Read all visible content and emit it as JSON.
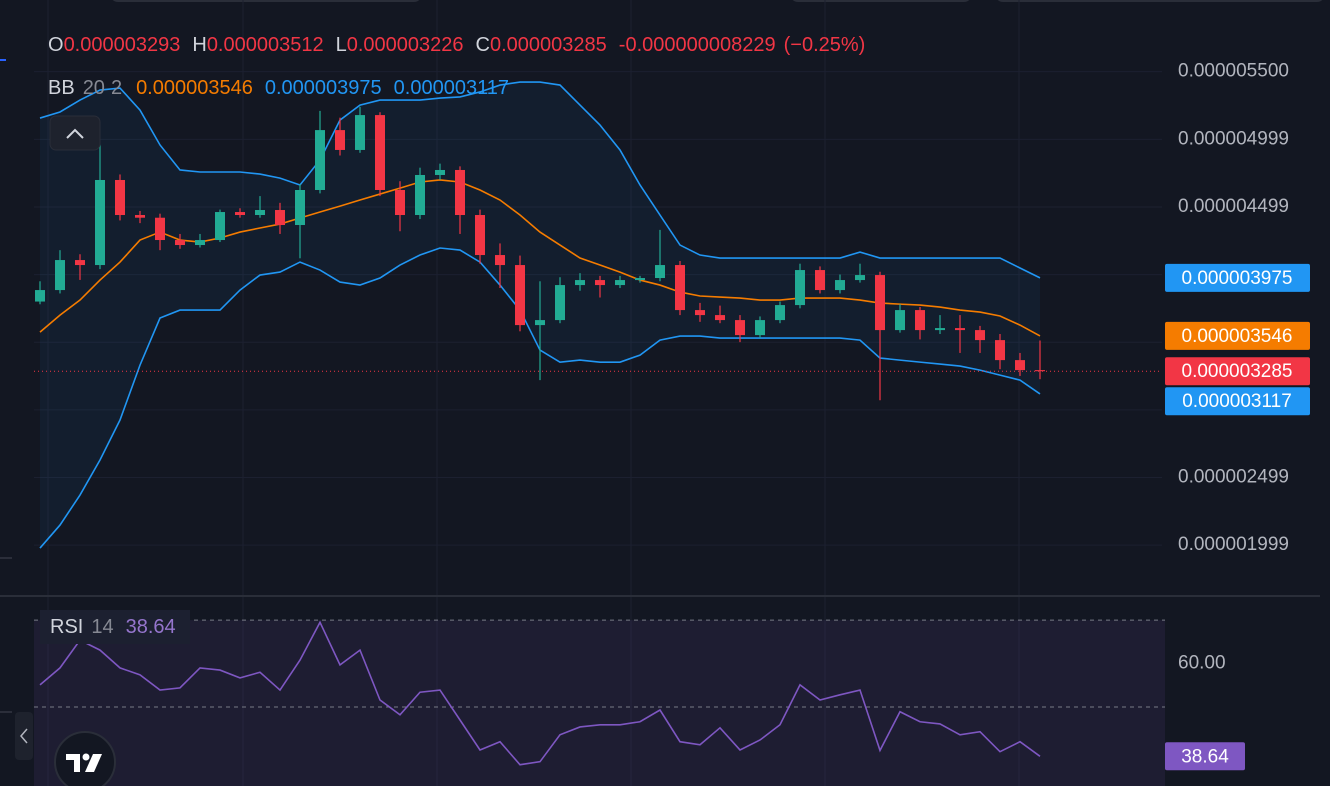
{
  "chart_data": [
    {
      "type": "candlestick",
      "ohlc_labels": [
        "O",
        "H",
        "L",
        "C"
      ],
      "open": [
        3.8e-06,
        3.885e-06,
        4.107e-06,
        4.07e-06,
        4.699e-06,
        4.44e-06,
        4.42e-06,
        4.255e-06,
        4.218e-06,
        4.255e-06,
        4.462e-06,
        4.44e-06,
        4.477e-06,
        4.366e-06,
        4.625e-06,
        5.068e-06,
        4.921e-06,
        5.179e-06,
        4.625e-06,
        4.44e-06,
        4.736e-06,
        4.773e-06,
        4.44e-06,
        4.144e-06,
        4.07e-06,
        3.626e-06,
        3.663e-06,
        3.922e-06,
        3.959e-06,
        3.922e-06,
        3.959e-06,
        3.974e-06,
        4.07e-06,
        3.737e-06,
        3.7e-06,
        3.663e-06,
        3.552e-06,
        3.663e-06,
        3.774e-06,
        4.033e-06,
        3.885e-06,
        3.959e-06,
        3.996e-06,
        3.589e-06,
        3.737e-06,
        3.589e-06,
        3.604e-06,
        3.589e-06,
        3.515e-06,
        3.367e-06,
        3.293e-06
      ],
      "high": [
        3.95e-06,
        4.18e-06,
        4.15e-06,
        4.96e-06,
        4.74e-06,
        4.47e-06,
        4.45e-06,
        4.3e-06,
        4.3e-06,
        4.48e-06,
        4.49e-06,
        4.58e-06,
        4.53e-06,
        4.67e-06,
        5.21e-06,
        5.16e-06,
        5.24e-06,
        5.2e-06,
        4.69e-06,
        4.79e-06,
        4.82e-06,
        4.8e-06,
        4.48e-06,
        4.23e-06,
        4.14e-06,
        3.95e-06,
        3.98e-06,
        4.01e-06,
        3.99e-06,
        3.99e-06,
        3.99e-06,
        4.33e-06,
        4.1e-06,
        3.79e-06,
        3.77e-06,
        3.7e-06,
        3.69e-06,
        3.8e-06,
        4.08e-06,
        4.06e-06,
        4e-06,
        4.08e-06,
        4.02e-06,
        3.78e-06,
        3.76e-06,
        3.7e-06,
        3.7e-06,
        3.62e-06,
        3.56e-06,
        3.42e-06,
        3.512e-06
      ],
      "low": [
        3.78e-06,
        3.86e-06,
        3.96e-06,
        4.04e-06,
        4.4e-06,
        4.38e-06,
        4.18e-06,
        4.19e-06,
        4.2e-06,
        4.24e-06,
        4.42e-06,
        4.42e-06,
        4.3e-06,
        4.12e-06,
        4.6e-06,
        4.88e-06,
        4.9e-06,
        4.58e-06,
        4.32e-06,
        4.41e-06,
        4.7e-06,
        4.3e-06,
        4.08e-06,
        3.9e-06,
        3.58e-06,
        3.219e-06,
        3.64e-06,
        3.88e-06,
        3.83e-06,
        3.9e-06,
        3.94e-06,
        3.95e-06,
        3.7e-06,
        3.65e-06,
        3.64e-06,
        3.5e-06,
        3.53e-06,
        3.64e-06,
        3.75e-06,
        3.86e-06,
        3.86e-06,
        3.94e-06,
        3.07e-06,
        3.57e-06,
        3.52e-06,
        3.56e-06,
        3.42e-06,
        3.42e-06,
        3.3e-06,
        3.25e-06,
        3.226e-06
      ],
      "close": [
        3.885e-06,
        4.107e-06,
        4.07e-06,
        4.699e-06,
        4.44e-06,
        4.42e-06,
        4.255e-06,
        4.218e-06,
        4.255e-06,
        4.462e-06,
        4.44e-06,
        4.477e-06,
        4.366e-06,
        4.625e-06,
        5.068e-06,
        4.921e-06,
        5.179e-06,
        4.625e-06,
        4.44e-06,
        4.736e-06,
        4.773e-06,
        4.44e-06,
        4.144e-06,
        4.07e-06,
        3.626e-06,
        3.663e-06,
        3.922e-06,
        3.959e-06,
        3.922e-06,
        3.959e-06,
        3.974e-06,
        4.07e-06,
        3.737e-06,
        3.7e-06,
        3.663e-06,
        3.552e-06,
        3.663e-06,
        3.774e-06,
        4.033e-06,
        3.885e-06,
        3.959e-06,
        3.996e-06,
        3.589e-06,
        3.737e-06,
        3.589e-06,
        3.604e-06,
        3.589e-06,
        3.515e-06,
        3.367e-06,
        3.293e-06,
        3.285e-06
      ],
      "change": {
        "value": -8.229e-09,
        "label": "-0.000000008229"
      },
      "change_pct": {
        "value": -0.25,
        "label": "(−0.25%)"
      },
      "up_color": "#22ab94",
      "down_color": "#f23645",
      "indicator": {
        "name": "BB",
        "length": 20,
        "mult": 2
      },
      "series": [
        {
          "color": "#f57c00",
          "values": [
            3.574e-06,
            3.7e-06,
            3.811e-06,
            3.959e-06,
            4.092e-06,
            4.255e-06,
            4.314e-06,
            4.255e-06,
            4.24e-06,
            4.27e-06,
            4.314e-06,
            4.344e-06,
            4.373e-06,
            4.418e-06,
            4.462e-06,
            4.506e-06,
            4.551e-06,
            4.595e-06,
            4.639e-06,
            4.684e-06,
            4.699e-06,
            4.684e-06,
            4.625e-06,
            4.551e-06,
            4.44e-06,
            4.314e-06,
            4.218e-06,
            4.122e-06,
            4.07e-06,
            4.018e-06,
            3.959e-06,
            3.922e-06,
            3.87e-06,
            3.841e-06,
            3.833e-06,
            3.826e-06,
            3.811e-06,
            3.811e-06,
            3.826e-06,
            3.826e-06,
            3.826e-06,
            3.811e-06,
            3.789e-06,
            3.781e-06,
            3.774e-06,
            3.759e-06,
            3.737e-06,
            3.722e-06,
            3.693e-06,
            3.626e-06,
            3.546e-06
          ]
        },
        {
          "color": "#2196f3",
          "values": [
            5.157e-06,
            5.202e-06,
            5.29e-06,
            5.364e-06,
            5.379e-06,
            5.216e-06,
            4.958e-06,
            4.773e-06,
            4.758e-06,
            4.758e-06,
            4.758e-06,
            4.743e-06,
            4.713e-06,
            4.662e-06,
            4.847e-06,
            5.142e-06,
            5.253e-06,
            5.29e-06,
            5.29e-06,
            5.29e-06,
            5.305e-06,
            5.313e-06,
            5.35e-06,
            5.401e-06,
            5.423e-06,
            5.423e-06,
            5.401e-06,
            5.253e-06,
            5.105e-06,
            4.921e-06,
            4.662e-06,
            4.44e-06,
            4.218e-06,
            4.144e-06,
            4.122e-06,
            4.122e-06,
            4.122e-06,
            4.122e-06,
            4.122e-06,
            4.122e-06,
            4.122e-06,
            4.166e-06,
            4.122e-06,
            4.122e-06,
            4.122e-06,
            4.122e-06,
            4.122e-06,
            4.122e-06,
            4.122e-06,
            4.048e-06,
            3.975e-06
          ]
        },
        {
          "color": "#2196f3",
          "values": [
            1.977e-06,
            2.147e-06,
            2.369e-06,
            2.628e-06,
            2.924e-06,
            3.33e-06,
            3.678e-06,
            3.737e-06,
            3.737e-06,
            3.737e-06,
            3.885e-06,
            3.996e-06,
            4.018e-06,
            4.092e-06,
            4.033e-06,
            3.944e-06,
            3.922e-06,
            3.974e-06,
            4.07e-06,
            4.144e-06,
            4.196e-06,
            4.181e-06,
            4.092e-06,
            3.922e-06,
            3.737e-06,
            3.441e-06,
            3.352e-06,
            3.367e-06,
            3.352e-06,
            3.352e-06,
            3.404e-06,
            3.515e-06,
            3.545e-06,
            3.545e-06,
            3.53e-06,
            3.53e-06,
            3.53e-06,
            3.53e-06,
            3.53e-06,
            3.53e-06,
            3.53e-06,
            3.515e-06,
            3.382e-06,
            3.367e-06,
            3.352e-06,
            3.338e-06,
            3.323e-06,
            3.293e-06,
            3.256e-06,
            3.219e-06,
            3.117e-06
          ]
        }
      ],
      "ylim": [
        1.63e-06,
        6.03e-06
      ],
      "yticks": [
        {
          "value": 5.5e-06,
          "label": "0.000005500"
        },
        4.999e-06,
        4.499e-06,
        3.999e-06,
        3.499e-06,
        2.999e-06,
        2.499e-06,
        1.999e-06
      ],
      "grid": true
    },
    {
      "type": "line",
      "name": "RSI",
      "period": 14,
      "color": "#7e57c2",
      "values": [
        55.1,
        59,
        65.4,
        63.1,
        59,
        57.4,
        53.9,
        54.4,
        59,
        58.5,
        56.7,
        58,
        53.9,
        60.8,
        69.5,
        59.7,
        63.1,
        51.6,
        48.2,
        53.4,
        53.9,
        47,
        40.1,
        42,
        36.7,
        37.4,
        43.6,
        45.4,
        45.9,
        45.9,
        46.6,
        49.3,
        42,
        41.3,
        45.2,
        40.1,
        42.4,
        45.9,
        55.1,
        51.6,
        52.8,
        53.9,
        40,
        48.9,
        46.6,
        46.1,
        43.6,
        44.3,
        39.7,
        42,
        38.64
      ],
      "ylim": [
        31.8,
        75.1
      ],
      "yticks": [
        {
          "value": 60,
          "label": "60.00"
        }
      ],
      "levels": [
        70,
        50
      ]
    }
  ]
}
